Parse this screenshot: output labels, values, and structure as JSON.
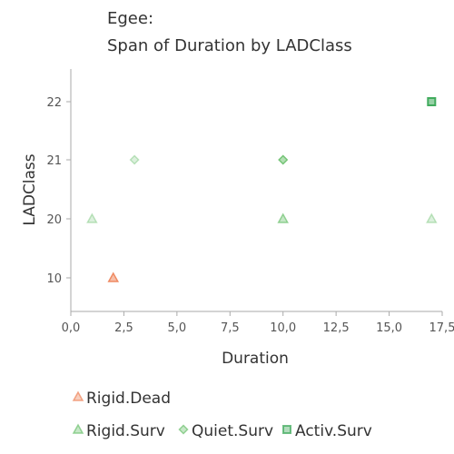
{
  "chart_data": {
    "type": "scatter",
    "title": "Egee:",
    "subtitle": "Span of Duration by LADClass",
    "xlabel": "Duration",
    "ylabel": "LADClass",
    "xlim": [
      0,
      17.5
    ],
    "x_ticks": [
      "0,0",
      "2,5",
      "5,0",
      "7,5",
      "10,0",
      "12,5",
      "15,0",
      "17,5"
    ],
    "y_categories": [
      "10",
      "20",
      "21",
      "22"
    ],
    "grid": false,
    "legend_position": "bottom",
    "series": [
      {
        "name": "Rigid.Dead",
        "marker": "triangle",
        "color": "#ef8a62",
        "points": [
          {
            "x": 2.0,
            "y": "10",
            "emphasis": "strong"
          }
        ]
      },
      {
        "name": "Rigid.Surv",
        "marker": "triangle",
        "color": "#74c476",
        "points": [
          {
            "x": 1.0,
            "y": "20",
            "emphasis": "light"
          },
          {
            "x": 10.0,
            "y": "20",
            "emphasis": "medium"
          },
          {
            "x": 17.0,
            "y": "20",
            "emphasis": "light"
          }
        ]
      },
      {
        "name": "Quiet.Surv",
        "marker": "diamond",
        "color": "#74c476",
        "points": [
          {
            "x": 3.0,
            "y": "21",
            "emphasis": "light"
          },
          {
            "x": 10.0,
            "y": "21",
            "emphasis": "strong"
          }
        ]
      },
      {
        "name": "Activ.Surv",
        "marker": "square",
        "color": "#41ab5d",
        "points": [
          {
            "x": 17.0,
            "y": "22",
            "emphasis": "strong"
          }
        ]
      }
    ]
  }
}
